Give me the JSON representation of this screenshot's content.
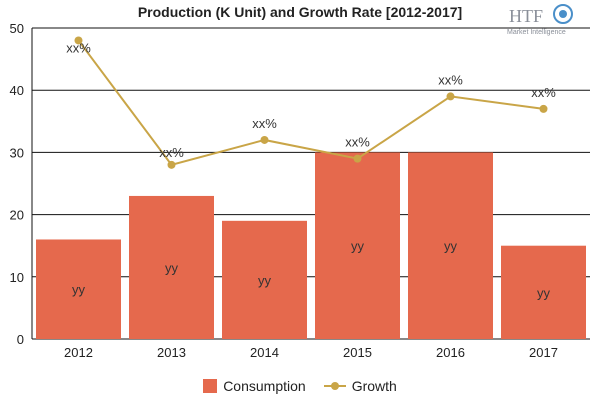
{
  "logo": {
    "main": "HTF",
    "sub": "Market Intelligence"
  },
  "chart_data": {
    "type": "bar",
    "title": "Production (K Unit) and Growth Rate [2012-2017]",
    "categories": [
      "2012",
      "2013",
      "2014",
      "2015",
      "2016",
      "2017"
    ],
    "ylim": [
      0,
      50
    ],
    "yticks": [
      0,
      10,
      20,
      30,
      40,
      50
    ],
    "grid": true,
    "legend_position": "bottom",
    "series": [
      {
        "name": "Consumption",
        "type": "bar",
        "color": "#e5694d",
        "values": [
          16,
          23,
          19,
          30,
          30,
          15
        ],
        "labels": [
          "yy",
          "yy",
          "yy",
          "yy",
          "yy",
          "yy"
        ]
      },
      {
        "name": "Growth",
        "type": "line",
        "color": "#c9a547",
        "values": [
          48,
          28,
          32,
          29,
          39,
          37
        ],
        "labels": [
          "xx%",
          "xx%",
          "xx%",
          "xx%",
          "xx%",
          "xx%"
        ]
      }
    ]
  }
}
